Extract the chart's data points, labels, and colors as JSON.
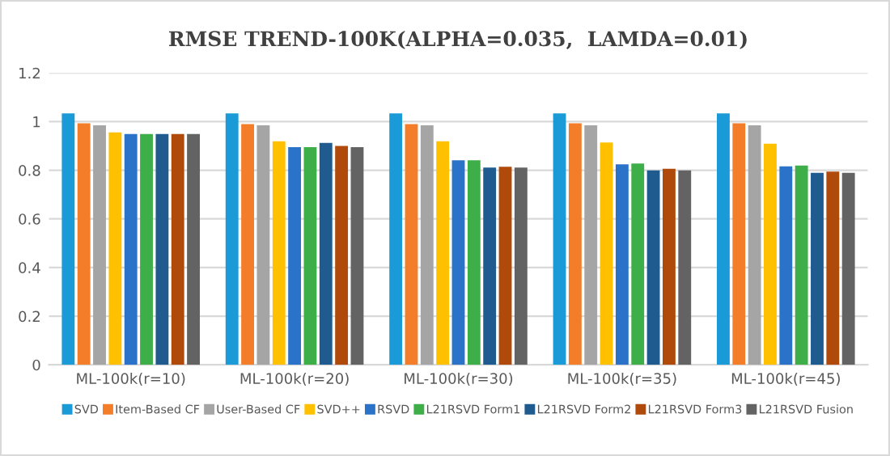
{
  "chart_data": {
    "type": "bar",
    "title": "RMSE TREND-100K(ALPHA=0.035,  LAMDA=0.01)",
    "categories": [
      "ML-100k(r=10)",
      "ML-100k(r=20)",
      "ML-100k(r=30)",
      "ML-100k(r=35)",
      "ML-100k(r=45)"
    ],
    "series": [
      {
        "name": "SVD",
        "color": "#1a9ad6",
        "values": [
          1.034,
          1.034,
          1.034,
          1.034,
          1.034
        ]
      },
      {
        "name": "Item-Based CF",
        "color": "#f47d2a",
        "values": [
          0.993,
          0.99,
          0.99,
          0.993,
          0.993
        ]
      },
      {
        "name": "User-Based CF",
        "color": "#a5a5a5",
        "values": [
          0.985,
          0.985,
          0.985,
          0.985,
          0.985
        ]
      },
      {
        "name": "SVD++",
        "color": "#ffc000",
        "values": [
          0.956,
          0.919,
          0.919,
          0.914,
          0.909
        ]
      },
      {
        "name": "RSVD",
        "color": "#2a73c9",
        "values": [
          0.949,
          0.895,
          0.841,
          0.824,
          0.816
        ]
      },
      {
        "name": "L21RSVD Form1",
        "color": "#3eae49",
        "values": [
          0.949,
          0.895,
          0.841,
          0.828,
          0.819
        ]
      },
      {
        "name": "L21RSVD Form2",
        "color": "#1f5b8e",
        "values": [
          0.949,
          0.912,
          0.811,
          0.799,
          0.789
        ]
      },
      {
        "name": "L21RSVD Form3",
        "color": "#b04a0a",
        "values": [
          0.949,
          0.9,
          0.814,
          0.806,
          0.794
        ]
      },
      {
        "name": "L21RSVD Fusion",
        "color": "#636363",
        "values": [
          0.949,
          0.895,
          0.811,
          0.799,
          0.789
        ]
      }
    ],
    "ylim": [
      0,
      1.2
    ],
    "yticks": [
      0,
      0.2,
      0.4,
      0.6,
      0.8,
      1,
      1.2
    ],
    "grid": "y",
    "legend": "bottom"
  }
}
